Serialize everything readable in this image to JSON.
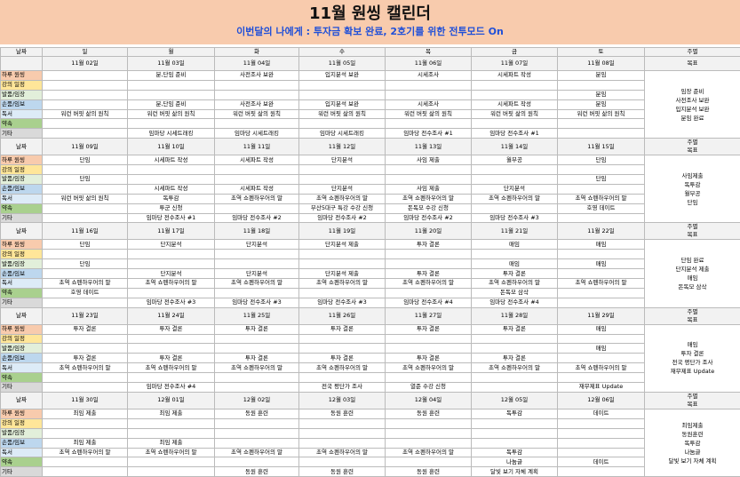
{
  "header": {
    "title": "11월 원씽 캘린더",
    "subtitle": "이번달의 나에게 : 투자금 확보 완료, 2호기를 위한 전투모드 On"
  },
  "table": {
    "corner": "날짜",
    "days": [
      "일",
      "월",
      "화",
      "수",
      "목",
      "금",
      "토"
    ],
    "weekly": "주별",
    "goal": "목표",
    "row_labels": [
      "하루 원씽",
      "강의 일정",
      "발품/임장",
      "손품/임보",
      "독서",
      "약속",
      "기타"
    ],
    "weeks": [
      {
        "dates": [
          "11월 02일",
          "11월 03일",
          "11월 04일",
          "11월 05일",
          "11월 06일",
          "11월 07일",
          "11월 08일"
        ],
        "cells": [
          [
            null,
            "분,단임 준비",
            "사전조사 보완",
            "입지분석 보완",
            "시세조사",
            "시세파트 작성",
            "분임"
          ],
          [
            null,
            null,
            null,
            null,
            null,
            null,
            null
          ],
          [
            null,
            null,
            null,
            null,
            null,
            null,
            "분임"
          ],
          [
            null,
            "분,단임 준비",
            "사전조사 보완",
            "입지분석 보완",
            "시세조사",
            "시세파트 작성",
            "분임"
          ],
          [
            "워런 버핏 삶의 원칙",
            "워런 버핏 삶의 원칙",
            "워런 버핏 삶의 원칙",
            "워런 버핏 삶의 원칙",
            "워런 버핏 삶의 원칙",
            "워런 버핏 삶의 원칙",
            "워런 버핏 삶의 원칙"
          ],
          [
            null,
            null,
            null,
            null,
            null,
            null,
            null
          ],
          [
            null,
            "임마당 시세트래킹",
            "임마당 시세트래킹",
            "임마당 시세트래킹",
            "임마당 전수조사 #1",
            "임마당 전수조사 #1",
            null
          ]
        ],
        "goals": [
          "임장 준비",
          "사전조사 보완",
          "입지분석 보완",
          "분임 완료"
        ]
      },
      {
        "dates": [
          "11월 09일",
          "11월 10일",
          "11월 11일",
          "11월 12일",
          "11월 13일",
          "11월 14일",
          "11월 15일"
        ],
        "cells": [
          [
            "단임",
            "시세파트 작성",
            "시세파트 작성",
            "단지분석",
            "사임 제출",
            "월부공",
            "단임"
          ],
          [
            null,
            null,
            null,
            null,
            null,
            null,
            null
          ],
          [
            "단임",
            null,
            null,
            null,
            null,
            null,
            "단임"
          ],
          [
            null,
            "시세파트 작성",
            "시세파트 작성",
            "단지분석",
            "사임 제출",
            "단지분석",
            null
          ],
          [
            "워런 버핏 삶의 원칙",
            "독투감",
            "초역 쇼펜하우어의 말",
            "초역 쇼펜하우어의 말",
            "초역 쇼펜하우어의 말",
            "초역 쇼펜하우어의 말",
            "초역 쇼펜하우어의 말"
          ],
          [
            null,
            "투군 신청",
            null,
            "부산5대구 특강 수강 신청",
            "돈독모 수강 신청",
            null,
            "호영 데이트"
          ],
          [
            null,
            "임마당 전수조사 #1",
            "임마당 전수조사 #2",
            "임마당 전수조사 #2",
            "임마당 전수조사 #2",
            "임마당 전수조사 #3",
            null
          ]
        ],
        "goals": [
          "사임제출",
          "독투감",
          "월부공",
          "단임"
        ]
      },
      {
        "dates": [
          "11월 16일",
          "11월 17일",
          "11월 18일",
          "11월 19일",
          "11월 20일",
          "11월 21일",
          "11월 22일"
        ],
        "cells": [
          [
            "단임",
            "단지분석",
            "단지분석",
            "단지분석 제출",
            "투자 결론",
            "매임",
            "매임"
          ],
          [
            null,
            null,
            null,
            null,
            null,
            null,
            null
          ],
          [
            "단임",
            null,
            null,
            null,
            null,
            "매임",
            "매임"
          ],
          [
            null,
            "단지분석",
            "단지분석",
            "단지분석 제출",
            "투자 결론",
            "투자 결론",
            null
          ],
          [
            "초역 쇼펜하우어의 말",
            "초역 쇼펜하우어의 말",
            "초역 쇼펜하우어의 말",
            "초역 쇼펜하우어의 말",
            "초역 쇼펜하우어의 말",
            "초역 쇼펜하우어의 말",
            "초역 쇼펜하우어의 말"
          ],
          [
            "호영 데이트",
            null,
            null,
            null,
            null,
            "돈독모 삼삭",
            null
          ],
          [
            null,
            "임마당 전수조사 #3",
            "임마당 전수조사 #3",
            "임마당 전수조사 #3",
            "임마당 전수조사 #4",
            "임마당 전수조사 #4",
            null
          ]
        ],
        "goals": [
          "단임 완료",
          "단지분석 제출",
          "매임",
          "돈독모 삼삭"
        ]
      },
      {
        "dates": [
          "11월 23일",
          "11월 24일",
          "11월 25일",
          "11월 26일",
          "11월 27일",
          "11월 28일",
          "11월 29일"
        ],
        "cells": [
          [
            "투자 결론",
            "투자 결론",
            "투자 결론",
            "투자 결론",
            "투자 결론",
            "투자 결론",
            "매임"
          ],
          [
            null,
            null,
            null,
            null,
            null,
            null,
            null
          ],
          [
            null,
            null,
            null,
            null,
            null,
            null,
            "매임"
          ],
          [
            "투자 결론",
            "투자 결론",
            "투자 결론",
            "투자 결론",
            "투자 결론",
            "투자 결론",
            null
          ],
          [
            "초역 쇼펜하우어의 말",
            "초역 쇼펜하우어의 말",
            "초역 쇼펜하우어의 말",
            "초역 쇼펜하우어의 말",
            "초역 쇼펜하우어의 말",
            "초역 쇼펜하우어의 말",
            "초역 쇼펜하우어의 말"
          ],
          [
            null,
            null,
            null,
            null,
            null,
            null,
            null
          ],
          [
            null,
            "임마당 전수조사 #4",
            null,
            "전국 평단가 조사",
            "열준 수강 신청",
            null,
            "재무제표 Update"
          ]
        ],
        "goals": [
          "매임",
          "투자 결론",
          "전국 평단가 조사",
          "재무제표 Update"
        ]
      },
      {
        "dates": [
          "11월 30일",
          "12월 01일",
          "12월 02일",
          "12월 03일",
          "12월 04일",
          "12월 05일",
          "12월 06일"
        ],
        "cells": [
          [
            "최임 제출",
            "최임 제출",
            "동원 훈련",
            "동원 훈련",
            "동원 훈련",
            "독투감",
            "데이트"
          ],
          [
            null,
            null,
            null,
            null,
            null,
            null,
            null
          ],
          [
            null,
            null,
            null,
            null,
            null,
            null,
            null
          ],
          [
            "최임 제출",
            "최임 제출",
            null,
            null,
            null,
            null,
            null
          ],
          [
            "초역 쇼펜하우어의 말",
            "초역 쇼펜하우어의 말",
            "초역 쇼펜하우어의 말",
            "초역 쇼펜하우어의 말",
            "초역 쇼펜하우어의 말",
            "독투감",
            null
          ],
          [
            null,
            null,
            null,
            null,
            null,
            "나눔글",
            "데이트"
          ],
          [
            null,
            null,
            "동원 훈련",
            "동원 훈련",
            "동원 훈련",
            "달빛 보기 자체 계획",
            null
          ]
        ],
        "goals": [
          "최임제출",
          "동원훈련",
          "독투감",
          "나눔글",
          "달빛 보기 자체 계획"
        ]
      }
    ]
  }
}
